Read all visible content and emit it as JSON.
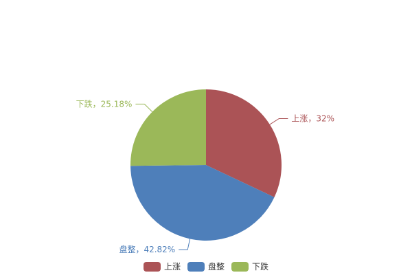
{
  "chart_data": {
    "type": "pie",
    "categories": [
      "上涨",
      "盘整",
      "下跌"
    ],
    "values": [
      32,
      42.82,
      25.18
    ],
    "labels": [
      "上涨，32%",
      "盘整，42.82%",
      "下跌，25.18%"
    ],
    "colors": [
      "#ab5356",
      "#4e7fba",
      "#9bb859"
    ],
    "start_angle": "top, clockwise",
    "legend_position": "bottom"
  }
}
